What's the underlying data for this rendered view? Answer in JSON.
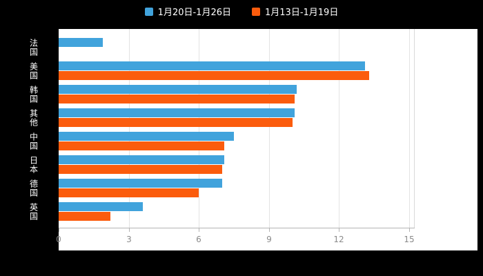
{
  "page": {
    "background": "#000000",
    "plot_background": "#ffffff"
  },
  "legend": {
    "position": "top-center",
    "text_color": "#ffffff"
  },
  "chart_data": {
    "type": "bar",
    "orientation": "horizontal",
    "title": "",
    "xlabel": "",
    "ylabel": "",
    "categories": [
      "法国",
      "美国",
      "韩国",
      "其他",
      "中国",
      "日本",
      "德国",
      "英国"
    ],
    "series": [
      {
        "name": "1月20日-1月26日",
        "color": "#41A3DC",
        "values": [
          1.9,
          13.1,
          10.2,
          10.1,
          7.5,
          7.1,
          7.0,
          3.6
        ]
      },
      {
        "name": "1月13日-1月19日",
        "color": "#FB5C0D",
        "values": [
          0,
          13.3,
          10.1,
          10.0,
          7.1,
          7.0,
          6.0,
          2.2
        ]
      }
    ],
    "x_ticks": [
      0,
      3,
      6,
      9,
      12,
      15
    ],
    "xlim": [
      0,
      15.2
    ],
    "grid": true,
    "grid_color": "#e3e3e3",
    "axis_color": "#b3b3b3",
    "tick_label_color": "#8a8a8a",
    "legend_position": "top"
  }
}
